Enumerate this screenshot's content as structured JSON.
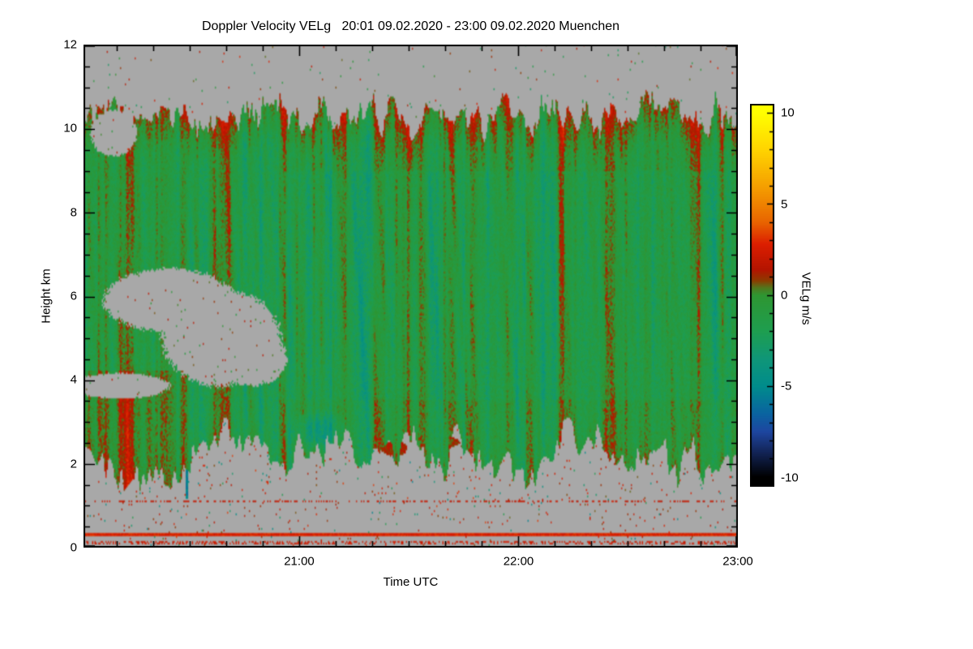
{
  "chart_data": {
    "type": "heatmap",
    "title": "Doppler Velocity VELg   20:01 09.02.2020 - 23:00 09.02.2020 Muenchen",
    "station": "Muenchen",
    "date": "09.02.2020",
    "x_axis": {
      "label": "Time UTC",
      "start": "20:01",
      "end": "23:00",
      "ticks": [
        "21:00",
        "22:00",
        "23:00"
      ],
      "minor_tick_minutes": 10
    },
    "y_axis": {
      "label": "Height km",
      "min": 0,
      "max": 12,
      "ticks": [
        0,
        2,
        4,
        6,
        8,
        10,
        12
      ],
      "minor_tick_km": 0.5
    },
    "colorbar": {
      "label": "VELg m/s",
      "min": -10,
      "max": 10,
      "ticks": [
        10,
        5,
        0,
        -5,
        -10
      ],
      "stops": [
        {
          "v": 10,
          "c": "#ffff00"
        },
        {
          "v": 8,
          "c": "#ffd400"
        },
        {
          "v": 6,
          "c": "#f5a000"
        },
        {
          "v": 4,
          "c": "#e86400"
        },
        {
          "v": 2.8,
          "c": "#dc1e00"
        },
        {
          "v": 1.4,
          "c": "#b41400"
        },
        {
          "v": 0.8,
          "c": "#8c3c00"
        },
        {
          "v": 0.4,
          "c": "#50781e"
        },
        {
          "v": 0,
          "c": "#2e9632"
        },
        {
          "v": -2,
          "c": "#1e9e50"
        },
        {
          "v": -3.5,
          "c": "#0f9678"
        },
        {
          "v": -5,
          "c": "#008c8c"
        },
        {
          "v": -6.5,
          "c": "#0a64a0"
        },
        {
          "v": -7.5,
          "c": "#1e46a0"
        },
        {
          "v": -8.5,
          "c": "#14285f"
        },
        {
          "v": -10,
          "c": "#000000"
        }
      ]
    },
    "no_data_color": "#a8a8a8",
    "background_color": "#ffffff",
    "field_summary": {
      "description": "Cloud radar Doppler velocity time-height section: broad cloud layer from ~2-3 km base up to ~10.5 km top, dominated by near-zero/weakly negative velocities (green, about -1 m/s) with vertical streaks of +1 to +3 m/s (orange/red), more orange in the left third and along the cloud top; gray no-data background below cloud base and in ragged holes in the left-centre of the cloud; ground-clutter lines near 0.3 km (solid red) and dotted speckle lines near 0.1 and 1.1 km.",
      "typical_value_ms": -1.0,
      "streak_amplitude_ms": 2.5,
      "cloud_top_km": [
        10.2,
        10.9
      ],
      "cloud_base_km": [
        1.9,
        3.4
      ],
      "gray_holes": [
        {
          "t": 0.13,
          "h": 5.9,
          "rt": 0.1,
          "rh": 0.75
        },
        {
          "t": 0.21,
          "h": 5.0,
          "rt": 0.09,
          "rh": 1.15
        },
        {
          "t": 0.26,
          "h": 4.5,
          "rt": 0.05,
          "rh": 0.65
        },
        {
          "t": 0.045,
          "h": 9.9,
          "rt": 0.035,
          "rh": 0.55
        },
        {
          "t": 0.055,
          "h": 3.85,
          "rt": 0.075,
          "rh": 0.3
        }
      ],
      "islands": [
        {
          "t": 0.475,
          "h": 2.35,
          "rt": 0.02,
          "rh": 0.18,
          "v": 1.2
        },
        {
          "t": 0.56,
          "h": 2.5,
          "rt": 0.015,
          "rh": 0.12,
          "v": 1.0
        },
        {
          "t": 0.64,
          "h": 2.95,
          "rt": 0.022,
          "rh": 0.28,
          "v": 0.8
        },
        {
          "t": 0.69,
          "h": 2.6,
          "rt": 0.012,
          "rh": 0.1,
          "v": 1.4
        }
      ],
      "teal_patch": {
        "t": 0.36,
        "h": 2.75,
        "rt": 0.05,
        "rh": 0.55,
        "dv": -2.2
      },
      "blue_streak": {
        "t": 0.157,
        "h_from": 1.15,
        "h_to": 2.35,
        "v": -5.5
      },
      "clutter_lines": [
        {
          "h": 0.28,
          "style": "solid",
          "v": 2.8
        },
        {
          "h": 1.08,
          "style": "dotted",
          "v": 2.0
        },
        {
          "h": 0.1,
          "style": "dotted",
          "v": 2.2
        }
      ]
    }
  }
}
